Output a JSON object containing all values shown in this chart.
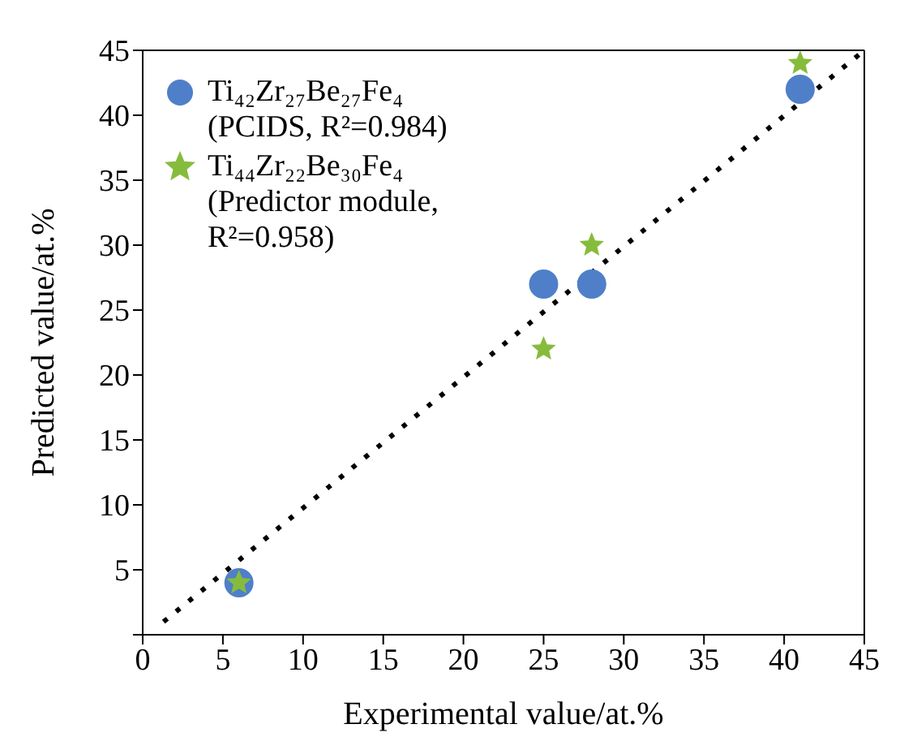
{
  "chart_data": {
    "type": "scatter",
    "xlabel": "Experimental value/at.%",
    "ylabel": "Predicted value/at.%",
    "xlim": [
      0,
      45
    ],
    "ylim": [
      0,
      45
    ],
    "xticks": [
      0,
      5,
      10,
      15,
      20,
      25,
      30,
      35,
      40,
      45
    ],
    "yticks": [
      {
        "value": 0,
        "label": null
      },
      5,
      10,
      15,
      20,
      25,
      30,
      35,
      40,
      45
    ],
    "legend": "top left",
    "series": [
      {
        "name": "Ti₄₂Zr₂₇Be₂₇Fe₄\n(PCIDS, R²=0.984)",
        "marker": "circle",
        "color": "#4f7fc9",
        "x": [
          6,
          25,
          28,
          41
        ],
        "values": [
          4,
          27,
          27,
          42
        ]
      },
      {
        "name": "Ti₄₄Zr₂₂Be₃₀Fe₄\n(Predictor module,\nR²=0.958)",
        "marker": "star",
        "color": "#86bc3c",
        "x": [
          6,
          25,
          28,
          41
        ],
        "values": [
          4,
          22,
          30,
          44
        ]
      },
      {
        "type": "line",
        "line_style": "dotted",
        "marker": "none",
        "color": "#000000",
        "x": [
          1.3,
          45
        ],
        "values": [
          1,
          45
        ]
      }
    ]
  }
}
